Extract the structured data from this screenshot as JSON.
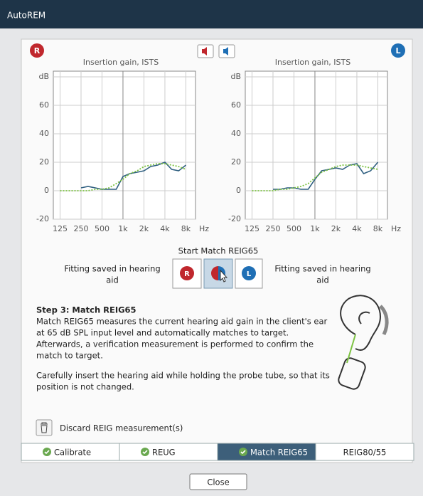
{
  "window": {
    "title": "AutoREM"
  },
  "badges": {
    "right": "R",
    "left": "L"
  },
  "chart_data": [
    {
      "type": "line",
      "title": "Insertion gain, ISTS",
      "xscale": "log",
      "grid": true,
      "x": [
        125,
        160,
        200,
        250,
        315,
        400,
        500,
        630,
        800,
        1000,
        1250,
        1600,
        2000,
        2500,
        3150,
        4000,
        5000,
        6300,
        8000
      ],
      "xlim": [
        100,
        11000
      ],
      "xticks": [
        125,
        250,
        500,
        {
          "value": 1000,
          "label": "1k"
        },
        {
          "value": 2000,
          "label": "2k"
        },
        {
          "value": 4000,
          "label": "4k"
        },
        {
          "value": 8000,
          "label": "8k"
        }
      ],
      "x_unit": "Hz",
      "ylim": [
        -20,
        84
      ],
      "yticks": [
        -20,
        0,
        20,
        40,
        60,
        {
          "value": 80,
          "label": "dB"
        }
      ],
      "series": [
        {
          "color": "#2f5f80",
          "style": "solid",
          "values": [
            null,
            null,
            null,
            2,
            3,
            2,
            1,
            1,
            1,
            10,
            12,
            13,
            14,
            17,
            18,
            20,
            15,
            14,
            18
          ]
        },
        {
          "color": "#7cc242",
          "style": "dotted",
          "values": [
            0,
            0,
            0,
            0,
            0,
            1,
            1,
            2,
            5,
            8,
            12,
            14,
            17,
            18,
            19,
            19,
            18,
            17,
            15
          ]
        }
      ]
    },
    {
      "type": "line",
      "title": "Insertion gain, ISTS",
      "xscale": "log",
      "grid": true,
      "x": [
        125,
        160,
        200,
        250,
        315,
        400,
        500,
        630,
        800,
        1000,
        1250,
        1600,
        2000,
        2500,
        3150,
        4000,
        5000,
        6300,
        8000
      ],
      "xlim": [
        100,
        11000
      ],
      "xticks": [
        125,
        250,
        500,
        {
          "value": 1000,
          "label": "1k"
        },
        {
          "value": 2000,
          "label": "2k"
        },
        {
          "value": 4000,
          "label": "4k"
        },
        {
          "value": 8000,
          "label": "8k"
        }
      ],
      "x_unit": "Hz",
      "ylim": [
        -20,
        84
      ],
      "yticks": [
        -20,
        0,
        20,
        40,
        60,
        {
          "value": 80,
          "label": "dB"
        }
      ],
      "series": [
        {
          "color": "#2f5f80",
          "style": "solid",
          "values": [
            null,
            null,
            null,
            1,
            1,
            2,
            2,
            1,
            1,
            8,
            14,
            15,
            16,
            15,
            18,
            19,
            12,
            14,
            20
          ]
        },
        {
          "color": "#7cc242",
          "style": "dotted",
          "values": [
            0,
            0,
            0,
            0,
            1,
            1,
            2,
            3,
            5,
            9,
            13,
            15,
            17,
            18,
            18,
            18,
            17,
            16,
            15
          ]
        }
      ]
    }
  ],
  "match": {
    "title": "Start Match REIG65",
    "left_status": [
      "Fitting saved in hearing",
      "aid"
    ],
    "right_status": [
      "Fitting saved in hearing",
      "aid"
    ],
    "right_button": "R",
    "left_button": "L"
  },
  "step": {
    "title": "Step 3: Match REIG65",
    "paragraphs": [
      [
        "Match REIG65 measures the current hearing aid gain in the client's ear",
        "at 65 dB SPL input level and automatically matches to target.",
        "Afterwards, a verification measurement is performed to confirm the",
        "match to target."
      ],
      [
        "Carefully insert the hearing aid while holding the probe tube, so that its",
        "position is not changed."
      ]
    ]
  },
  "discard": "Discard REIG measurement(s)",
  "tabs": [
    {
      "label": "Calibrate",
      "done": true,
      "active": false
    },
    {
      "label": "REUG",
      "done": true,
      "active": false
    },
    {
      "label": "Match REIG65",
      "done": true,
      "active": true
    },
    {
      "label": "REIG80/55",
      "done": false,
      "active": false
    }
  ],
  "close": "Close"
}
